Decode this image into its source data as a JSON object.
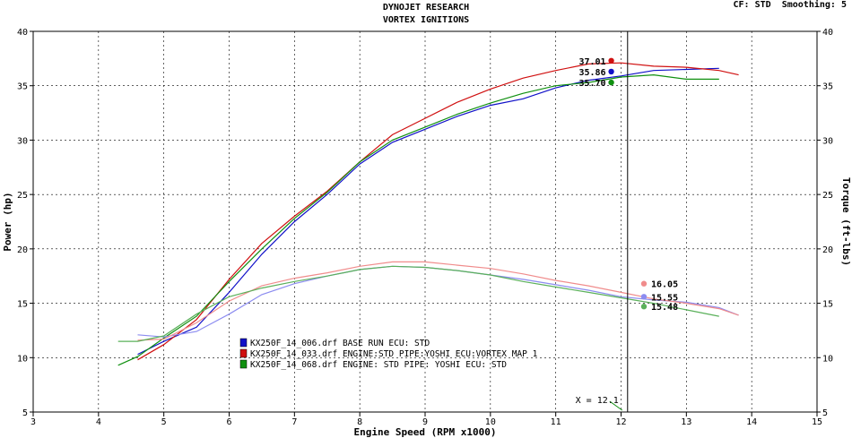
{
  "header": {
    "title_line1": "DYNOJET RESEARCH",
    "title_line2": "VORTEX IGNITIONS",
    "cf_label": "CF:",
    "cf_value": "STD",
    "smoothing_label": "Smoothing:",
    "smoothing_value": "5"
  },
  "chart_data": {
    "type": "line",
    "xlabel": "Engine Speed (RPM x1000)",
    "ylabel": "Power (hp)",
    "y2label": "Torque (ft-lbs)",
    "xlim": [
      3,
      15
    ],
    "ylim": [
      5,
      40
    ],
    "y2lim": [
      5,
      40
    ],
    "x_ticks": [
      3,
      4,
      5,
      6,
      7,
      8,
      9,
      10,
      11,
      12,
      13,
      14,
      15
    ],
    "y_ticks": [
      5,
      10,
      15,
      20,
      25,
      30,
      35,
      40
    ],
    "grid": true,
    "cursor": {
      "label": "X = 12.1",
      "x": 12.1
    },
    "legend": {
      "placement": "bottom-left",
      "entries": [
        {
          "text": "KX250F_14_006.drf BASE RUN ECU: STD",
          "color": "#1010c8"
        },
        {
          "text": "KX250F_14_033.drf ENGINE:STD PIPE:YOSHI ECU:VORTEX MAP 1",
          "color": "#d01010"
        },
        {
          "text": "KX250F_14_068.drf ENGINE: STD PIPE: YOSHI ECU: STD",
          "color": "#109010"
        }
      ]
    },
    "colors": {
      "blue": "#1010c8",
      "red": "#d01010",
      "green": "#109010",
      "blue_light": "#8c8cf0",
      "red_light": "#f08c8c",
      "green_light": "#5ab05a"
    },
    "series": [
      {
        "kind": "power",
        "color": "blue",
        "x": [
          4.6,
          5.0,
          5.5,
          6.0,
          6.5,
          7.0,
          7.5,
          8.0,
          8.5,
          9.0,
          9.5,
          10.0,
          10.5,
          11.0,
          11.5,
          12.0,
          12.5,
          13.0,
          13.5
        ],
        "y": [
          10.3,
          11.5,
          12.8,
          16.0,
          19.5,
          22.5,
          25.0,
          27.8,
          29.8,
          31.0,
          32.2,
          33.2,
          33.8,
          34.8,
          35.5,
          35.9,
          36.4,
          36.5,
          36.6
        ]
      },
      {
        "kind": "power",
        "color": "red",
        "x": [
          4.6,
          5.0,
          5.5,
          6.0,
          6.5,
          7.0,
          7.5,
          8.0,
          8.5,
          9.0,
          9.5,
          10.0,
          10.5,
          11.0,
          11.5,
          12.0,
          12.5,
          13.0,
          13.5,
          13.8
        ],
        "y": [
          9.8,
          11.2,
          13.5,
          17.2,
          20.5,
          23.0,
          25.3,
          28.0,
          30.5,
          32.0,
          33.5,
          34.7,
          35.7,
          36.4,
          37.0,
          37.1,
          36.8,
          36.7,
          36.4,
          36.0
        ]
      },
      {
        "kind": "power",
        "color": "green",
        "x": [
          4.3,
          4.6,
          5.0,
          5.5,
          6.0,
          6.5,
          7.0,
          7.5,
          8.0,
          8.5,
          9.0,
          9.5,
          10.0,
          10.5,
          11.0,
          11.5,
          12.0,
          12.5,
          13.0,
          13.5
        ],
        "y": [
          9.3,
          10.1,
          11.8,
          13.8,
          17.0,
          20.0,
          22.8,
          25.2,
          28.0,
          30.0,
          31.2,
          32.4,
          33.4,
          34.3,
          35.0,
          35.3,
          35.8,
          36.0,
          35.6,
          35.6
        ]
      },
      {
        "kind": "torque",
        "color": "blue_light",
        "x": [
          4.6,
          5.0,
          5.5,
          6.0,
          6.5,
          7.0,
          7.5,
          8.0,
          8.5,
          9.0,
          9.5,
          10.0,
          10.5,
          11.0,
          11.5,
          12.0,
          12.5,
          13.0,
          13.5,
          13.8
        ],
        "y": [
          12.1,
          11.9,
          12.4,
          14.0,
          15.8,
          16.8,
          17.5,
          18.1,
          18.4,
          18.3,
          18.0,
          17.6,
          17.2,
          16.7,
          16.2,
          15.6,
          15.3,
          15.1,
          14.6,
          13.9
        ]
      },
      {
        "kind": "torque",
        "color": "red_light",
        "x": [
          4.6,
          5.0,
          5.5,
          6.0,
          6.5,
          7.0,
          7.5,
          8.0,
          8.5,
          9.0,
          9.5,
          10.0,
          10.5,
          11.0,
          11.5,
          12.0,
          12.5,
          13.0,
          13.5,
          13.8
        ],
        "y": [
          11.6,
          11.7,
          13.2,
          15.2,
          16.6,
          17.3,
          17.8,
          18.4,
          18.8,
          18.8,
          18.5,
          18.2,
          17.7,
          17.1,
          16.6,
          16.0,
          15.4,
          15.0,
          14.5,
          13.9
        ]
      },
      {
        "kind": "torque",
        "color": "green_light",
        "x": [
          4.3,
          4.6,
          5.0,
          5.5,
          6.0,
          6.5,
          7.0,
          7.5,
          8.0,
          8.5,
          9.0,
          9.5,
          10.0,
          10.5,
          11.0,
          11.5,
          12.0,
          12.5,
          13.0,
          13.5
        ],
        "y": [
          11.5,
          11.5,
          12.0,
          14.0,
          15.6,
          16.4,
          17.0,
          17.5,
          18.1,
          18.4,
          18.3,
          18.0,
          17.6,
          17.0,
          16.5,
          16.0,
          15.5,
          15.0,
          14.4,
          13.8
        ]
      }
    ],
    "markers": [
      {
        "label": "37.01",
        "x": 11.85,
        "y": 37.3,
        "color": "red",
        "side": "left"
      },
      {
        "label": "35.86",
        "x": 11.85,
        "y": 36.3,
        "color": "blue",
        "side": "left"
      },
      {
        "label": "35.70",
        "x": 11.85,
        "y": 35.3,
        "color": "green",
        "side": "left"
      },
      {
        "label": "16.05",
        "x": 12.35,
        "y": 16.8,
        "color": "red_light",
        "side": "right"
      },
      {
        "label": "15.55",
        "x": 12.35,
        "y": 15.6,
        "color": "blue_light",
        "side": "right"
      },
      {
        "label": "15.48",
        "x": 12.35,
        "y": 14.7,
        "color": "green_light",
        "side": "right"
      }
    ]
  }
}
